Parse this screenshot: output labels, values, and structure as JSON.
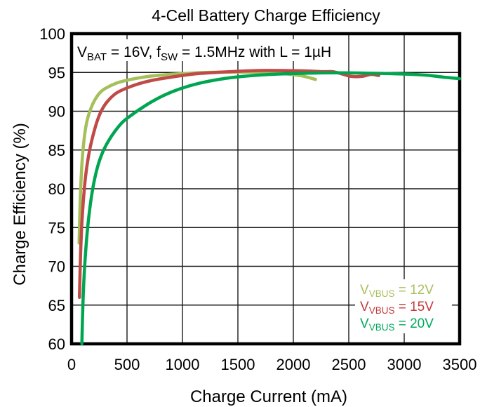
{
  "chart_data": {
    "type": "line",
    "title": "4-Cell Battery Charge Efficiency",
    "xlabel": "Charge Current (mA)",
    "ylabel": "Charge Efficiency (%)",
    "xlim": [
      0,
      3500
    ],
    "ylim": [
      60,
      100
    ],
    "x_ticks": [
      0,
      500,
      1000,
      1500,
      2000,
      2500,
      3000,
      3500
    ],
    "y_ticks": [
      60,
      65,
      70,
      75,
      80,
      85,
      90,
      95,
      100
    ],
    "grid": true,
    "legend_position": "lower right",
    "colors": {
      "grid": "#1a1a1a",
      "frame": "#000000",
      "background": "#ffffff"
    },
    "annotation": {
      "text": "VBAT = 16V, fSW = 1.5MHz with L = 1µH",
      "segments": [
        {
          "text": "V"
        },
        {
          "text": "BAT",
          "sub": true
        },
        {
          "text": " = 16V, f"
        },
        {
          "text": "SW",
          "sub": true
        },
        {
          "text": " = 1.5MHz with L = 1µH"
        }
      ]
    },
    "legend_entries": [
      {
        "id": "vbus-12v",
        "pre": "V",
        "sub": "VBUS",
        "post": " = 12V",
        "color": "#a9c05c"
      },
      {
        "id": "vbus-15v",
        "pre": "V",
        "sub": "VBUS",
        "post": " = 15V",
        "color": "#c33b3b"
      },
      {
        "id": "vbus-20v",
        "pre": "V",
        "sub": "VBUS",
        "post": " = 20V",
        "color": "#00a95c"
      }
    ],
    "series": [
      {
        "id": "vbus-12v",
        "name": "VVBUS = 12V",
        "color": "#a5bf5a",
        "points": [
          [
            68,
            73
          ],
          [
            72,
            75.5
          ],
          [
            78,
            78.5
          ],
          [
            85,
            81
          ],
          [
            95,
            83.6
          ],
          [
            105,
            85.3
          ],
          [
            120,
            87.2
          ],
          [
            140,
            88.8
          ],
          [
            165,
            90
          ],
          [
            200,
            91.2
          ],
          [
            250,
            92.3
          ],
          [
            300,
            92.9
          ],
          [
            400,
            93.6
          ],
          [
            500,
            94
          ],
          [
            650,
            94.4
          ],
          [
            800,
            94.65
          ],
          [
            1000,
            94.85
          ],
          [
            1200,
            95
          ],
          [
            1400,
            95.05
          ],
          [
            1600,
            95.05
          ],
          [
            1800,
            94.95
          ],
          [
            1950,
            94.8
          ],
          [
            2080,
            94.55
          ],
          [
            2200,
            94.1
          ]
        ]
      },
      {
        "id": "vbus-15v",
        "name": "VVBUS = 15V",
        "color": "#bf4a47",
        "points": [
          [
            71,
            66
          ],
          [
            76,
            69
          ],
          [
            82,
            72
          ],
          [
            90,
            74.8
          ],
          [
            100,
            77.2
          ],
          [
            112,
            79.5
          ],
          [
            128,
            81.8
          ],
          [
            150,
            84
          ],
          [
            175,
            85.8
          ],
          [
            205,
            87.5
          ],
          [
            235,
            88.9
          ],
          [
            270,
            90.1
          ],
          [
            320,
            91.2
          ],
          [
            400,
            92.3
          ],
          [
            500,
            93
          ],
          [
            620,
            93.6
          ],
          [
            750,
            94.05
          ],
          [
            900,
            94.4
          ],
          [
            1100,
            94.8
          ],
          [
            1300,
            95
          ],
          [
            1500,
            95.15
          ],
          [
            1700,
            95.25
          ],
          [
            1900,
            95.25
          ],
          [
            2100,
            95.2
          ],
          [
            2250,
            95.1
          ],
          [
            2350,
            95.1
          ],
          [
            2430,
            94.85
          ],
          [
            2520,
            94.5
          ],
          [
            2620,
            94.5
          ],
          [
            2700,
            94.75
          ],
          [
            2770,
            94.6
          ]
        ]
      },
      {
        "id": "vbus-20v",
        "name": "VVBUS = 20V",
        "color": "#00a550",
        "points": [
          [
            93,
            60
          ],
          [
            97,
            62.5
          ],
          [
            102,
            65
          ],
          [
            109,
            67.6
          ],
          [
            118,
            70
          ],
          [
            130,
            72.5
          ],
          [
            145,
            75
          ],
          [
            163,
            77.3
          ],
          [
            185,
            79.5
          ],
          [
            210,
            81.4
          ],
          [
            240,
            83.1
          ],
          [
            280,
            84.7
          ],
          [
            330,
            86.1
          ],
          [
            390,
            87.4
          ],
          [
            460,
            88.6
          ],
          [
            540,
            89.5
          ],
          [
            620,
            90.3
          ],
          [
            720,
            91.2
          ],
          [
            840,
            92.1
          ],
          [
            980,
            92.9
          ],
          [
            1150,
            93.6
          ],
          [
            1350,
            94.15
          ],
          [
            1550,
            94.5
          ],
          [
            1800,
            94.75
          ],
          [
            2100,
            94.9
          ],
          [
            2400,
            94.95
          ],
          [
            2700,
            94.9
          ],
          [
            3000,
            94.8
          ],
          [
            3200,
            94.65
          ],
          [
            3350,
            94.4
          ],
          [
            3500,
            94.2
          ]
        ]
      }
    ]
  }
}
